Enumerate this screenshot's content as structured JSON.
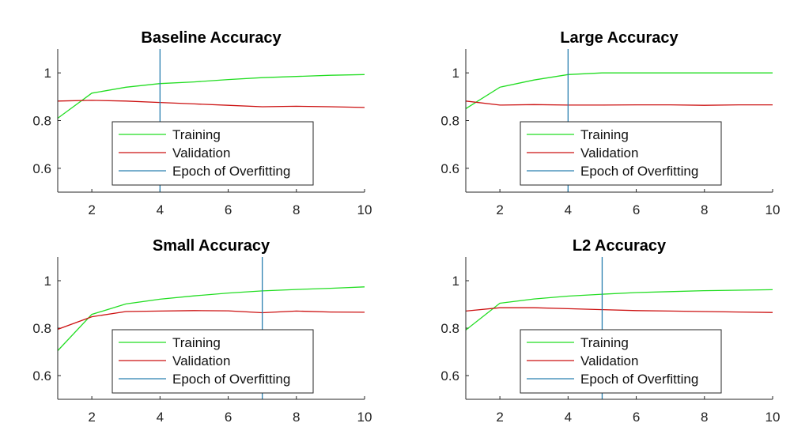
{
  "colors": {
    "training": "#22dd22",
    "validation": "#cc1111",
    "overfit": "#2a80b0",
    "axis": "#262626"
  },
  "chart_data": [
    {
      "type": "line",
      "title": "Baseline Accuracy",
      "xlim": [
        1,
        10
      ],
      "ylim": [
        0.5,
        1.1
      ],
      "xticks": [
        2,
        4,
        6,
        8,
        10
      ],
      "yticks": [
        0.6,
        0.8,
        1
      ],
      "ytick_labels": [
        "0.6",
        "0.8",
        "1"
      ],
      "x": [
        1,
        2,
        3,
        4,
        5,
        6,
        7,
        8,
        9,
        10
      ],
      "series": [
        {
          "name": "Training",
          "color": "#22dd22",
          "values": [
            0.81,
            0.915,
            0.94,
            0.955,
            0.962,
            0.972,
            0.98,
            0.985,
            0.99,
            0.993
          ]
        },
        {
          "name": "Validation",
          "color": "#cc1111",
          "values": [
            0.882,
            0.885,
            0.882,
            0.876,
            0.87,
            0.864,
            0.858,
            0.86,
            0.858,
            0.855
          ]
        }
      ],
      "vline": {
        "name": "Epoch of Overfitting",
        "x": 4,
        "color": "#2a80b0"
      },
      "legend": [
        "Training",
        "Validation",
        "Epoch of Overfitting"
      ],
      "legend_position": "bottom-center"
    },
    {
      "type": "line",
      "title": "Large Accuracy",
      "xlim": [
        1,
        10
      ],
      "ylim": [
        0.5,
        1.1
      ],
      "xticks": [
        2,
        4,
        6,
        8,
        10
      ],
      "yticks": [
        0.6,
        0.8,
        1
      ],
      "ytick_labels": [
        "0.6",
        "0.8",
        "1"
      ],
      "x": [
        1,
        2,
        3,
        4,
        5,
        6,
        7,
        8,
        9,
        10
      ],
      "series": [
        {
          "name": "Training",
          "color": "#22dd22",
          "values": [
            0.85,
            0.94,
            0.97,
            0.993,
            1.0,
            1.0,
            1.0,
            1.0,
            1.0,
            1.0
          ]
        },
        {
          "name": "Validation",
          "color": "#cc1111",
          "values": [
            0.882,
            0.865,
            0.867,
            0.865,
            0.865,
            0.866,
            0.866,
            0.864,
            0.866,
            0.866
          ]
        }
      ],
      "vline": {
        "name": "Epoch of Overfitting",
        "x": 4,
        "color": "#2a80b0"
      },
      "legend": [
        "Training",
        "Validation",
        "Epoch of Overfitting"
      ],
      "legend_position": "bottom-center"
    },
    {
      "type": "line",
      "title": "Small Accuracy",
      "xlim": [
        1,
        10
      ],
      "ylim": [
        0.5,
        1.1
      ],
      "xticks": [
        2,
        4,
        6,
        8,
        10
      ],
      "yticks": [
        0.6,
        0.8,
        1
      ],
      "ytick_labels": [
        "0.6",
        "0.8",
        "1"
      ],
      "x": [
        1,
        2,
        3,
        4,
        5,
        6,
        7,
        8,
        9,
        10
      ],
      "series": [
        {
          "name": "Training",
          "color": "#22dd22",
          "values": [
            0.705,
            0.858,
            0.902,
            0.922,
            0.936,
            0.948,
            0.957,
            0.963,
            0.968,
            0.974
          ]
        },
        {
          "name": "Validation",
          "color": "#cc1111",
          "values": [
            0.795,
            0.848,
            0.87,
            0.872,
            0.874,
            0.873,
            0.865,
            0.872,
            0.868,
            0.867
          ]
        }
      ],
      "vline": {
        "name": "Epoch of Overfitting",
        "x": 7,
        "color": "#2a80b0"
      },
      "legend": [
        "Training",
        "Validation",
        "Epoch of Overfitting"
      ],
      "legend_position": "bottom-center"
    },
    {
      "type": "line",
      "title": "L2 Accuracy",
      "xlim": [
        1,
        10
      ],
      "ylim": [
        0.5,
        1.1
      ],
      "xticks": [
        2,
        4,
        6,
        8,
        10
      ],
      "yticks": [
        0.6,
        0.8,
        1
      ],
      "ytick_labels": [
        "0.6",
        "0.8",
        "1"
      ],
      "x": [
        1,
        2,
        3,
        4,
        5,
        6,
        7,
        8,
        9,
        10
      ],
      "series": [
        {
          "name": "Training",
          "color": "#22dd22",
          "values": [
            0.792,
            0.905,
            0.923,
            0.935,
            0.943,
            0.95,
            0.954,
            0.958,
            0.96,
            0.962
          ]
        },
        {
          "name": "Validation",
          "color": "#cc1111",
          "values": [
            0.872,
            0.886,
            0.886,
            0.882,
            0.878,
            0.874,
            0.872,
            0.87,
            0.868,
            0.866
          ]
        }
      ],
      "vline": {
        "name": "Epoch of Overfitting",
        "x": 5,
        "color": "#2a80b0"
      },
      "legend": [
        "Training",
        "Validation",
        "Epoch of Overfitting"
      ],
      "legend_position": "bottom-center"
    }
  ]
}
